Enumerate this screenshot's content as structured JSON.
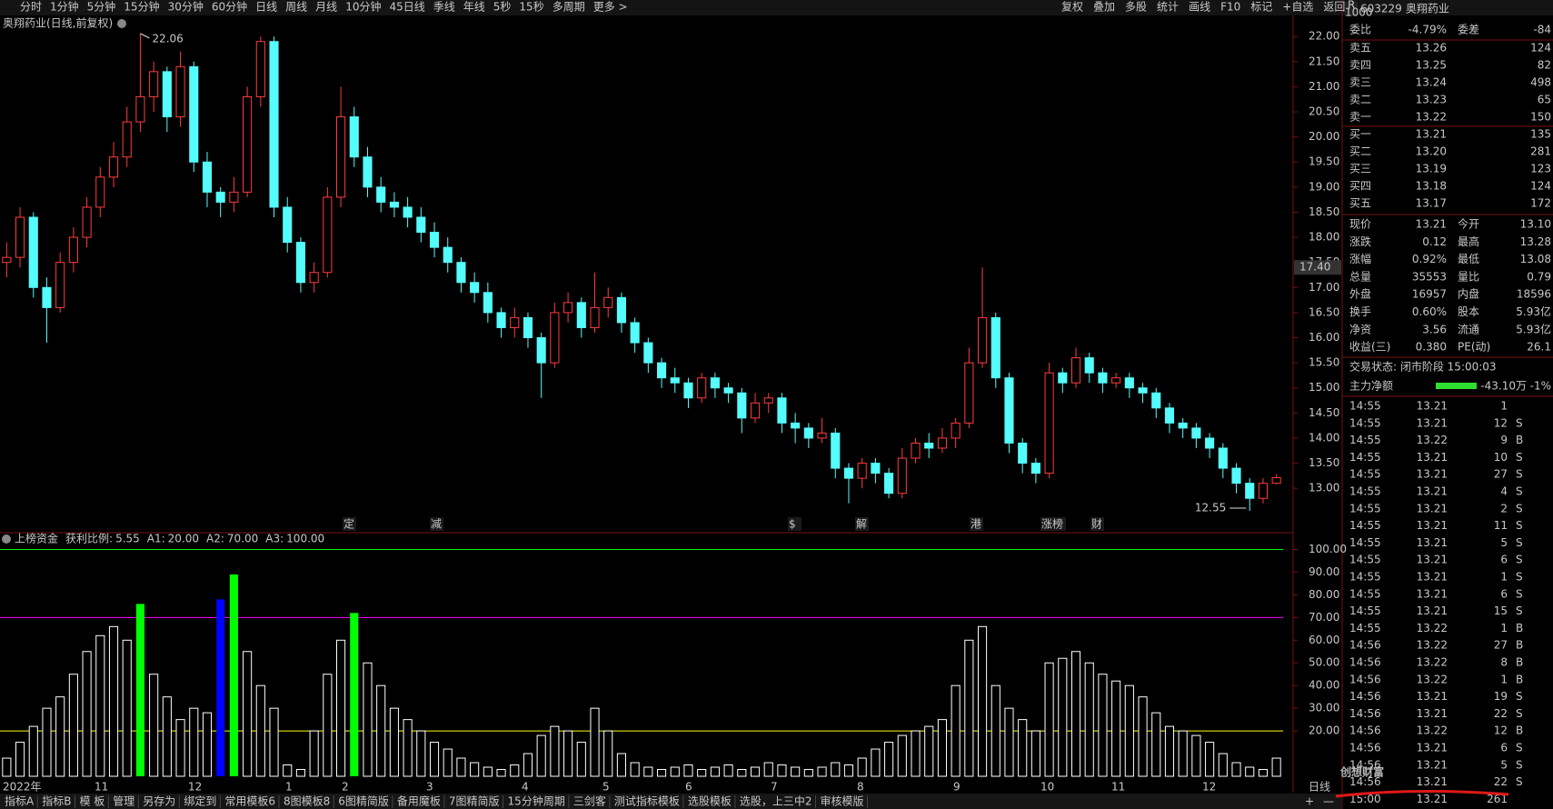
{
  "toolbar": {
    "left": [
      "分时",
      "1分钟",
      "5分钟",
      "15分钟",
      "30分钟",
      "60分钟",
      "日线",
      "周线",
      "月线",
      "10分钟",
      "45日线",
      "季线",
      "年线",
      "5秒",
      "15秒",
      "多周期",
      "更多 >"
    ],
    "active": "日线",
    "right": [
      "复权",
      "叠加",
      "多股",
      "统计",
      "画线",
      "F10",
      "标记",
      "+自选",
      "返回"
    ]
  },
  "chart_data": [
    {
      "type": "candlestick",
      "title": "奥翔药业(日线,前复权)",
      "up_color": "#ff3c3c",
      "down_color": "#54fcfc",
      "ylim": [
        12.17,
        22.42
      ],
      "yticks": [
        {
          "value": 13,
          "label": "13.00"
        },
        {
          "value": 13.5,
          "label": "13.50"
        },
        {
          "value": 14,
          "label": "14.00"
        },
        {
          "value": 14.5,
          "label": "14.50"
        },
        {
          "value": 15,
          "label": "15.00"
        },
        {
          "value": 15.5,
          "label": "15.50"
        },
        {
          "value": 16,
          "label": "16.00"
        },
        {
          "value": 16.5,
          "label": "16.50"
        },
        {
          "value": 17,
          "label": "17.00"
        },
        {
          "value": 17.5,
          "label": "17.50"
        },
        {
          "value": 18,
          "label": "18.00"
        },
        {
          "value": 18.5,
          "label": "18.50"
        },
        {
          "value": 19,
          "label": "19.00"
        },
        {
          "value": 19.5,
          "label": "19.50"
        },
        {
          "value": 20,
          "label": "20.00"
        },
        {
          "value": 20.5,
          "label": "20.50"
        },
        {
          "value": 21,
          "label": "21.00"
        },
        {
          "value": 21.5,
          "label": "21.50"
        },
        {
          "value": 22,
          "label": "22.00"
        }
      ],
      "crosshair": {
        "value": 17.4,
        "label": "17.40"
      },
      "high_note": 22.06,
      "low_note": 12.55,
      "events": [
        "定",
        "减",
        "$",
        "解",
        "港",
        "涨榜",
        "财"
      ],
      "x_labels": [
        "2022年",
        "11",
        "12",
        "1",
        "2",
        "3",
        "4",
        "5",
        "6",
        "7",
        "8",
        "9",
        "10",
        "11",
        "12"
      ],
      "period": "日线",
      "candles": [
        [
          17.5,
          17.9,
          17.2,
          17.6
        ],
        [
          17.6,
          18.6,
          17.4,
          18.4
        ],
        [
          18.4,
          18.5,
          16.8,
          17.0
        ],
        [
          17.0,
          17.2,
          15.9,
          16.6
        ],
        [
          16.6,
          17.7,
          16.5,
          17.5
        ],
        [
          17.5,
          18.2,
          17.3,
          18.0
        ],
        [
          18.0,
          18.8,
          17.8,
          18.6
        ],
        [
          18.6,
          19.4,
          18.4,
          19.2
        ],
        [
          19.2,
          19.9,
          19.0,
          19.6
        ],
        [
          19.6,
          20.6,
          19.4,
          20.3
        ],
        [
          20.3,
          22.06,
          20.1,
          20.8
        ],
        [
          20.8,
          21.5,
          20.5,
          21.3
        ],
        [
          21.3,
          21.4,
          20.1,
          20.4
        ],
        [
          20.4,
          21.7,
          20.2,
          21.4
        ],
        [
          21.4,
          21.5,
          19.3,
          19.5
        ],
        [
          19.5,
          19.7,
          18.6,
          18.9
        ],
        [
          18.9,
          19.0,
          18.4,
          18.7
        ],
        [
          18.7,
          19.2,
          18.5,
          18.9
        ],
        [
          18.9,
          21.0,
          18.8,
          20.8
        ],
        [
          20.8,
          22.0,
          20.6,
          21.9
        ],
        [
          21.9,
          22.0,
          18.4,
          18.6
        ],
        [
          18.6,
          18.8,
          17.7,
          17.9
        ],
        [
          17.9,
          18.0,
          16.9,
          17.1
        ],
        [
          17.1,
          17.5,
          16.9,
          17.3
        ],
        [
          17.3,
          19.0,
          17.2,
          18.8
        ],
        [
          18.8,
          21.0,
          18.6,
          20.4
        ],
        [
          20.4,
          20.6,
          19.4,
          19.6
        ],
        [
          19.6,
          19.8,
          18.8,
          19.0
        ],
        [
          19.0,
          19.2,
          18.5,
          18.7
        ],
        [
          18.7,
          18.9,
          18.4,
          18.6
        ],
        [
          18.6,
          18.8,
          18.2,
          18.4
        ],
        [
          18.4,
          18.6,
          17.9,
          18.1
        ],
        [
          18.1,
          18.3,
          17.6,
          17.8
        ],
        [
          17.8,
          18.0,
          17.3,
          17.5
        ],
        [
          17.5,
          17.6,
          16.9,
          17.1
        ],
        [
          17.1,
          17.3,
          16.7,
          16.9
        ],
        [
          16.9,
          17.1,
          16.3,
          16.5
        ],
        [
          16.5,
          16.6,
          16.0,
          16.2
        ],
        [
          16.2,
          16.6,
          16.0,
          16.4
        ],
        [
          16.4,
          16.5,
          15.8,
          16.0
        ],
        [
          16.0,
          16.1,
          14.8,
          15.5
        ],
        [
          15.5,
          16.7,
          15.4,
          16.5
        ],
        [
          16.5,
          16.9,
          16.3,
          16.7
        ],
        [
          16.7,
          16.8,
          16.0,
          16.2
        ],
        [
          16.2,
          17.3,
          16.1,
          16.6
        ],
        [
          16.6,
          17.0,
          16.4,
          16.8
        ],
        [
          16.8,
          16.9,
          16.1,
          16.3
        ],
        [
          16.3,
          16.4,
          15.7,
          15.9
        ],
        [
          15.9,
          16.0,
          15.3,
          15.5
        ],
        [
          15.5,
          15.6,
          15.0,
          15.2
        ],
        [
          15.2,
          15.4,
          14.9,
          15.1
        ],
        [
          15.1,
          15.2,
          14.6,
          14.8
        ],
        [
          14.8,
          15.3,
          14.7,
          15.2
        ],
        [
          15.2,
          15.3,
          14.8,
          15.0
        ],
        [
          15.0,
          15.1,
          14.7,
          14.9
        ],
        [
          14.9,
          15.0,
          14.1,
          14.4
        ],
        [
          14.4,
          14.9,
          14.3,
          14.7
        ],
        [
          14.7,
          14.9,
          14.5,
          14.8
        ],
        [
          14.8,
          14.9,
          14.1,
          14.3
        ],
        [
          14.3,
          14.5,
          13.9,
          14.2
        ],
        [
          14.2,
          14.3,
          13.8,
          14.0
        ],
        [
          14.0,
          14.4,
          13.9,
          14.1
        ],
        [
          14.1,
          14.2,
          13.2,
          13.4
        ],
        [
          13.4,
          13.5,
          12.7,
          13.2
        ],
        [
          13.2,
          13.6,
          13.0,
          13.5
        ],
        [
          13.5,
          13.6,
          13.1,
          13.3
        ],
        [
          13.3,
          13.4,
          12.8,
          12.9
        ],
        [
          12.9,
          13.8,
          12.8,
          13.6
        ],
        [
          13.6,
          14.0,
          13.5,
          13.9
        ],
        [
          13.9,
          14.1,
          13.6,
          13.8
        ],
        [
          13.8,
          14.2,
          13.7,
          14.0
        ],
        [
          14.0,
          14.4,
          13.8,
          14.3
        ],
        [
          14.3,
          15.8,
          14.2,
          15.5
        ],
        [
          15.5,
          17.4,
          15.4,
          16.4
        ],
        [
          16.4,
          16.5,
          15.0,
          15.2
        ],
        [
          15.2,
          15.3,
          13.7,
          13.9
        ],
        [
          13.9,
          14.0,
          13.3,
          13.5
        ],
        [
          13.5,
          13.6,
          13.1,
          13.3
        ],
        [
          13.3,
          15.5,
          13.2,
          15.3
        ],
        [
          15.3,
          15.4,
          14.9,
          15.1
        ],
        [
          15.1,
          15.8,
          15.0,
          15.6
        ],
        [
          15.6,
          15.7,
          15.1,
          15.3
        ],
        [
          15.3,
          15.4,
          14.9,
          15.1
        ],
        [
          15.1,
          15.3,
          15.0,
          15.2
        ],
        [
          15.2,
          15.3,
          14.8,
          15.0
        ],
        [
          15.0,
          15.1,
          14.7,
          14.9
        ],
        [
          14.9,
          15.0,
          14.4,
          14.6
        ],
        [
          14.6,
          14.7,
          14.1,
          14.3
        ],
        [
          14.3,
          14.4,
          14.0,
          14.2
        ],
        [
          14.2,
          14.3,
          13.8,
          14.0
        ],
        [
          14.0,
          14.1,
          13.6,
          13.8
        ],
        [
          13.8,
          13.9,
          13.2,
          13.4
        ],
        [
          13.4,
          13.5,
          12.9,
          13.1
        ],
        [
          13.1,
          13.2,
          12.55,
          12.8
        ],
        [
          12.8,
          13.2,
          12.7,
          13.1
        ],
        [
          13.1,
          13.28,
          13.08,
          13.21
        ]
      ]
    },
    {
      "type": "bar",
      "title": "上榜资金",
      "stat": {
        "name": "获利比例:",
        "value": 5.55
      },
      "lines": [
        {
          "name": "A1:",
          "value": 20,
          "label": "20.00",
          "color": "#ffff00"
        },
        {
          "name": "A2:",
          "value": 70,
          "label": "70.00",
          "color": "#ff00ff"
        },
        {
          "name": "A3:",
          "value": 100,
          "label": "100.00",
          "color": "#00ff00"
        }
      ],
      "ylim": [
        0,
        103
      ],
      "yticks": [
        {
          "value": 20,
          "label": "20.00"
        },
        {
          "value": 30,
          "label": "30.00"
        },
        {
          "value": 40,
          "label": "40.00"
        },
        {
          "value": 50,
          "label": "50.00"
        },
        {
          "value": 60,
          "label": "60.00"
        },
        {
          "value": 70,
          "label": "70.00"
        },
        {
          "value": 80,
          "label": "80.00"
        },
        {
          "value": 90,
          "label": "90.00"
        },
        {
          "value": 100,
          "label": "100.00"
        }
      ],
      "values": [
        8,
        15,
        22,
        30,
        35,
        45,
        55,
        62,
        66,
        60,
        76,
        45,
        35,
        25,
        30,
        28,
        78,
        89,
        55,
        40,
        30,
        5,
        3,
        20,
        45,
        60,
        72,
        50,
        40,
        30,
        25,
        20,
        15,
        12,
        8,
        6,
        4,
        3,
        5,
        10,
        18,
        22,
        20,
        15,
        30,
        20,
        10,
        6,
        4,
        3,
        4,
        5,
        3,
        4,
        5,
        3,
        4,
        6,
        5,
        4,
        3,
        4,
        6,
        5,
        8,
        12,
        15,
        18,
        20,
        22,
        25,
        40,
        60,
        66,
        40,
        30,
        25,
        20,
        50,
        52,
        55,
        50,
        45,
        42,
        40,
        35,
        28,
        22,
        20,
        18,
        15,
        10,
        6,
        4,
        3,
        8
      ],
      "colors": [
        "#ffffff",
        "#ffffff",
        "#ffffff",
        "#ffffff",
        "#ffffff",
        "#ffffff",
        "#ffffff",
        "#ffffff",
        "#ffffff",
        "#ffffff",
        "#00ff00",
        "#ffffff",
        "#ffffff",
        "#ffffff",
        "#ffffff",
        "#ffffff",
        "#0000ff",
        "#00ff00",
        "#ffffff",
        "#ffffff",
        "#ffffff",
        "#ffffff",
        "#ffffff",
        "#ffffff",
        "#ffffff",
        "#ffffff",
        "#00ff00",
        "#ffffff",
        "#ffffff",
        "#ffffff",
        "#ffffff",
        "#ffffff",
        "#ffffff",
        "#ffffff",
        "#ffffff",
        "#ffffff",
        "#ffffff",
        "#ffffff",
        "#ffffff",
        "#ffffff",
        "#ffffff",
        "#ffffff",
        "#ffffff",
        "#ffffff",
        "#ffffff",
        "#ffffff",
        "#ffffff",
        "#ffffff",
        "#ffffff",
        "#ffffff",
        "#ffffff",
        "#ffffff",
        "#ffffff",
        "#ffffff",
        "#ffffff",
        "#ffffff",
        "#ffffff",
        "#ffffff",
        "#ffffff",
        "#ffffff",
        "#ffffff",
        "#ffffff",
        "#ffffff",
        "#ffffff",
        "#ffffff",
        "#ffffff",
        "#ffffff",
        "#ffffff",
        "#ffffff",
        "#ffffff",
        "#ffffff",
        "#ffffff",
        "#ffffff",
        "#ffffff",
        "#ffffff",
        "#ffffff",
        "#ffffff",
        "#ffffff",
        "#ffffff",
        "#ffffff",
        "#ffffff",
        "#ffffff",
        "#ffffff",
        "#ffffff",
        "#ffffff",
        "#ffffff",
        "#ffffff",
        "#ffffff",
        "#ffffff",
        "#ffffff",
        "#ffffff",
        "#ffffff",
        "#ffffff",
        "#ffffff",
        "#ffffff",
        "#ffffff"
      ]
    }
  ],
  "quote": {
    "code": "603229",
    "name": "奥翔药业",
    "badge": "R",
    "badge2": "1000",
    "ratio": [
      "委比",
      "-4.79%",
      "委差",
      "-84"
    ],
    "book": [
      [
        "卖五",
        "13.26",
        "124"
      ],
      [
        "卖四",
        "13.25",
        "82"
      ],
      [
        "卖三",
        "13.24",
        "498"
      ],
      [
        "卖二",
        "13.23",
        "65"
      ],
      [
        "卖一",
        "13.22",
        "150"
      ],
      [
        "买一",
        "13.21",
        "135"
      ],
      [
        "买二",
        "13.20",
        "281"
      ],
      [
        "买三",
        "13.19",
        "123"
      ],
      [
        "买四",
        "13.18",
        "124"
      ],
      [
        "买五",
        "13.17",
        "172"
      ]
    ],
    "stats": [
      [
        "现价",
        "13.21",
        "今开",
        "13.10"
      ],
      [
        "涨跌",
        "0.12",
        "最高",
        "13.28"
      ],
      [
        "涨幅",
        "0.92%",
        "最低",
        "13.08"
      ],
      [
        "总量",
        "35553",
        "量比",
        "0.79"
      ],
      [
        "外盘",
        "16957",
        "内盘",
        "18596"
      ],
      [
        "换手",
        "0.60%",
        "股本",
        "5.93亿"
      ],
      [
        "净资",
        "3.56",
        "流通",
        "5.93亿"
      ],
      [
        "收益(三)",
        "0.380",
        "PE(动)",
        "26.1"
      ]
    ],
    "state": "交易状态: 闭市阶段 15:00:03",
    "flow": [
      "主力净额",
      "-43.10万",
      "-1%"
    ],
    "ticks": [
      [
        "14:55",
        "13.21",
        "1"
      ],
      [
        "14:55",
        "13.21",
        "12",
        "S"
      ],
      [
        "14:55",
        "13.22",
        "9",
        "B"
      ],
      [
        "14:55",
        "13.21",
        "10",
        "S"
      ],
      [
        "14:55",
        "13.21",
        "27",
        "S"
      ],
      [
        "14:55",
        "13.21",
        "4",
        "S"
      ],
      [
        "14:55",
        "13.21",
        "2",
        "S"
      ],
      [
        "14:55",
        "13.21",
        "11",
        "S"
      ],
      [
        "14:55",
        "13.21",
        "5",
        "S"
      ],
      [
        "14:55",
        "13.21",
        "6",
        "S"
      ],
      [
        "14:55",
        "13.21",
        "1",
        "S"
      ],
      [
        "14:55",
        "13.21",
        "6",
        "S"
      ],
      [
        "14:55",
        "13.21",
        "15",
        "S"
      ],
      [
        "14:55",
        "13.22",
        "1",
        "B"
      ],
      [
        "14:56",
        "13.22",
        "27",
        "B"
      ],
      [
        "14:56",
        "13.22",
        "8",
        "B"
      ],
      [
        "14:56",
        "13.22",
        "1",
        "B"
      ],
      [
        "14:56",
        "13.21",
        "19",
        "S"
      ],
      [
        "14:56",
        "13.21",
        "22",
        "S"
      ],
      [
        "14:56",
        "13.22",
        "12",
        "B"
      ],
      [
        "14:56",
        "13.21",
        "6",
        "S"
      ],
      [
        "14:56",
        "13.21",
        "5",
        "S"
      ],
      [
        "14:56",
        "13.21",
        "22",
        "S"
      ],
      [
        "15:00",
        "13.21",
        "261"
      ]
    ],
    "watermark": "创想财富"
  },
  "tabs": {
    "items": [
      "指标A",
      "指标B",
      "模 板",
      "管理",
      "另存为",
      "绑定到",
      "常用模板6",
      "8图模板8",
      "6图精简版",
      "备用魔板",
      "7图精简版",
      "15分钟周期",
      "三剑客",
      "测试指标模板",
      "选股模板",
      "选股，上三中2",
      "审核模版"
    ],
    "active": "测试指标模板",
    "right": [
      "+",
      "—"
    ]
  }
}
